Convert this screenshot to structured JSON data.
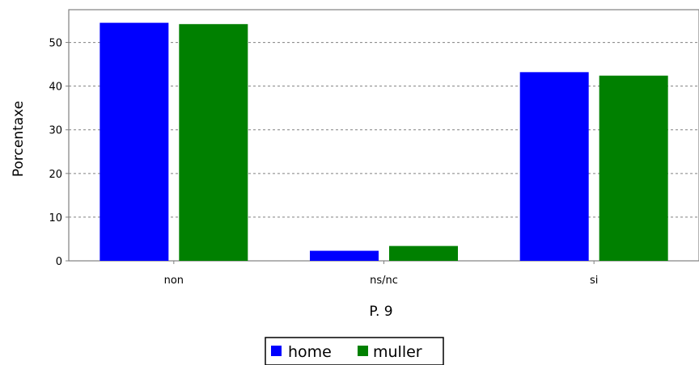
{
  "chart_data": {
    "type": "bar",
    "title": "",
    "xlabel": "P. 9",
    "ylabel": "Porcentaxe",
    "categories": [
      "non",
      "ns/nc",
      "si"
    ],
    "series": [
      {
        "name": "home",
        "color": "#0000ff",
        "values": [
          54.5,
          2.3,
          43.2
        ]
      },
      {
        "name": "muller",
        "color": "#008000",
        "values": [
          54.2,
          3.4,
          42.4
        ]
      }
    ],
    "ylim": [
      0,
      57.5
    ],
    "yticks": [
      0,
      10,
      20,
      30,
      40,
      50
    ],
    "grid": true,
    "legend_position": "bottom-center"
  }
}
